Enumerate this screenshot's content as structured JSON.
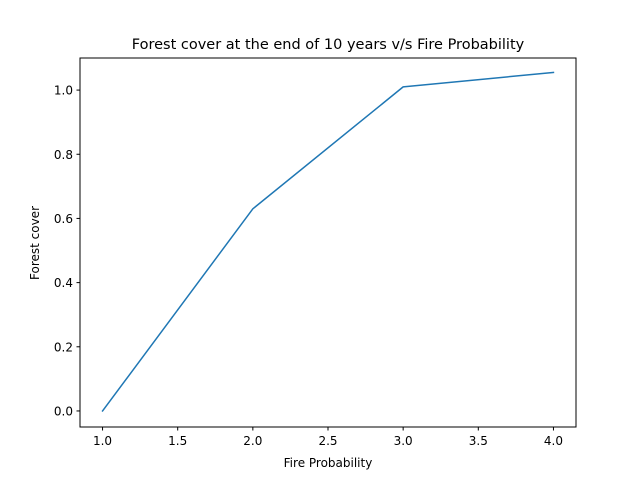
{
  "chart_data": {
    "type": "line",
    "title": "Forest cover at the end of 10 years v/s Fire Probability",
    "xlabel": "Fire Probability",
    "ylabel": "Forest cover",
    "xlim": [
      0.85,
      4.15
    ],
    "ylim": [
      -0.05,
      1.1
    ],
    "xticks": [
      1.0,
      1.5,
      2.0,
      2.5,
      3.0,
      3.5,
      4.0
    ],
    "xtick_labels": [
      "1.0",
      "1.5",
      "2.0",
      "2.5",
      "3.0",
      "3.5",
      "4.0"
    ],
    "yticks": [
      0.0,
      0.2,
      0.4,
      0.6,
      0.8,
      1.0
    ],
    "ytick_labels": [
      "0.0",
      "0.2",
      "0.4",
      "0.6",
      "0.8",
      "1.0"
    ],
    "grid": false,
    "series": [
      {
        "color": "#1f77b4",
        "x": [
          1.0,
          2.0,
          3.0,
          4.0
        ],
        "y": [
          0.0,
          0.63,
          1.01,
          1.055
        ]
      }
    ]
  }
}
